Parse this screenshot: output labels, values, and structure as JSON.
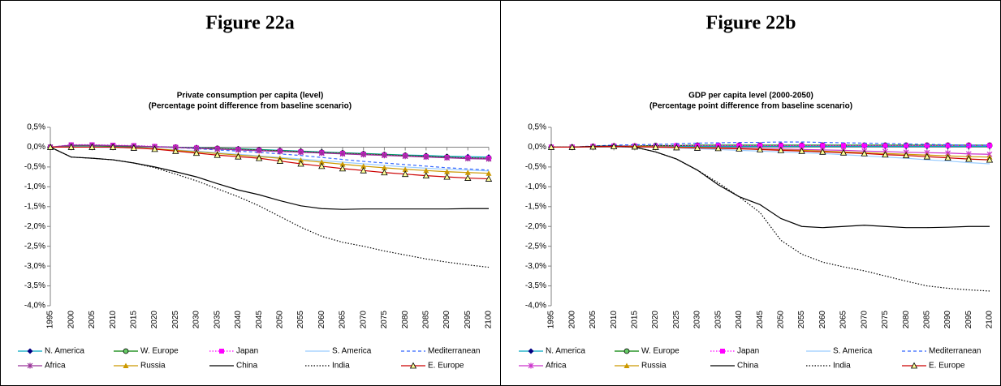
{
  "chart_data": [
    {
      "type": "line",
      "heading": "Figure 22a",
      "title": "Private consumption per capita (level)",
      "subtitle": "(Percentage point difference from baseline scenario)",
      "x": [
        1995,
        2000,
        2005,
        2010,
        2015,
        2020,
        2025,
        2030,
        2035,
        2040,
        2045,
        2050,
        2055,
        2060,
        2065,
        2070,
        2075,
        2080,
        2085,
        2090,
        2095,
        2100
      ],
      "ylim": [
        -4,
        0.5
      ],
      "yticks": [
        {
          "value": 0.5,
          "label": "0,5%"
        },
        {
          "value": 0,
          "label": "0,0%"
        },
        {
          "value": -0.5,
          "label": "-0,5%"
        },
        {
          "value": -1,
          "label": "-1,0%"
        },
        {
          "value": -1.5,
          "label": "-1,5%"
        },
        {
          "value": -2,
          "label": "-2,0%"
        },
        {
          "value": -2.5,
          "label": "-2,5%"
        },
        {
          "value": -3,
          "label": "-3,0%"
        },
        {
          "value": -3.5,
          "label": "-3,5%"
        },
        {
          "value": -4,
          "label": "-4,0%"
        }
      ],
      "series": [
        {
          "name": "N. America",
          "color": "#00a8c0",
          "marker": "diamond",
          "dash": "solid",
          "values": [
            0,
            0.03,
            0.03,
            0.02,
            0.02,
            0.01,
            0,
            -0.01,
            -0.03,
            -0.04,
            -0.06,
            -0.08,
            -0.1,
            -0.12,
            -0.14,
            -0.16,
            -0.18,
            -0.2,
            -0.21,
            -0.23,
            -0.24,
            -0.25
          ]
        },
        {
          "name": "W. Europe",
          "color": "#008000",
          "marker": "circle",
          "dash": "solid",
          "values": [
            0,
            0.04,
            0.04,
            0.03,
            0.02,
            0.01,
            0,
            -0.02,
            -0.03,
            -0.05,
            -0.07,
            -0.09,
            -0.11,
            -0.13,
            -0.15,
            -0.17,
            -0.19,
            -0.21,
            -0.23,
            -0.25,
            -0.27,
            -0.28
          ]
        },
        {
          "name": "Japan",
          "color": "#ff00ff",
          "marker": "square",
          "dash": "dot",
          "values": [
            0,
            0.06,
            0.06,
            0.05,
            0.04,
            0.02,
            0,
            -0.02,
            -0.04,
            -0.06,
            -0.08,
            -0.1,
            -0.12,
            -0.14,
            -0.16,
            -0.18,
            -0.2,
            -0.22,
            -0.24,
            -0.26,
            -0.27,
            -0.28
          ]
        },
        {
          "name": "S. America",
          "color": "#99ccff",
          "marker": "none",
          "dash": "solid",
          "values": [
            0,
            0,
            0,
            -0.01,
            -0.02,
            -0.04,
            -0.07,
            -0.1,
            -0.14,
            -0.18,
            -0.22,
            -0.26,
            -0.3,
            -0.34,
            -0.38,
            -0.42,
            -0.46,
            -0.5,
            -0.53,
            -0.56,
            -0.58,
            -0.6
          ]
        },
        {
          "name": "Mediterranean",
          "color": "#3366ff",
          "marker": "none",
          "dash": "dash",
          "values": [
            0,
            0.05,
            0.05,
            0.04,
            0.03,
            0.01,
            -0.01,
            -0.04,
            -0.07,
            -0.1,
            -0.13,
            -0.17,
            -0.21,
            -0.26,
            -0.31,
            -0.36,
            -0.4,
            -0.44,
            -0.48,
            -0.52,
            -0.55,
            -0.58
          ]
        },
        {
          "name": "Africa",
          "color": "#993399",
          "marker": "star",
          "dash": "solid",
          "values": [
            0,
            0.05,
            0.05,
            0.04,
            0.03,
            0.01,
            -0.01,
            -0.03,
            -0.05,
            -0.07,
            -0.09,
            -0.11,
            -0.13,
            -0.15,
            -0.17,
            -0.19,
            -0.21,
            -0.23,
            -0.25,
            -0.27,
            -0.29,
            -0.3
          ]
        },
        {
          "name": "Russia",
          "color": "#cc9900",
          "marker": "triangle",
          "dash": "solid",
          "values": [
            0,
            0,
            0,
            0,
            -0.02,
            -0.04,
            -0.08,
            -0.12,
            -0.16,
            -0.2,
            -0.24,
            -0.28,
            -0.33,
            -0.38,
            -0.43,
            -0.48,
            -0.52,
            -0.56,
            -0.59,
            -0.62,
            -0.64,
            -0.66
          ]
        },
        {
          "name": "China",
          "color": "#000000",
          "marker": "none",
          "dash": "solid",
          "values": [
            0,
            -0.25,
            -0.28,
            -0.32,
            -0.4,
            -0.5,
            -0.62,
            -0.75,
            -0.92,
            -1.08,
            -1.2,
            -1.35,
            -1.48,
            -1.55,
            -1.57,
            -1.56,
            -1.56,
            -1.56,
            -1.56,
            -1.56,
            -1.55,
            -1.55
          ]
        },
        {
          "name": "India",
          "color": "#000000",
          "marker": "none",
          "dash": "dot",
          "values": [
            0,
            -0.25,
            -0.28,
            -0.32,
            -0.4,
            -0.52,
            -0.68,
            -0.85,
            -1.05,
            -1.25,
            -1.48,
            -1.75,
            -2.02,
            -2.25,
            -2.4,
            -2.5,
            -2.62,
            -2.72,
            -2.82,
            -2.9,
            -2.97,
            -3.03
          ]
        },
        {
          "name": "E. Europe",
          "color": "#cc0000",
          "marker": "triangle-open",
          "dash": "solid",
          "values": [
            0,
            0,
            0,
            0,
            -0.02,
            -0.05,
            -0.1,
            -0.15,
            -0.2,
            -0.24,
            -0.28,
            -0.35,
            -0.42,
            -0.48,
            -0.54,
            -0.59,
            -0.64,
            -0.68,
            -0.72,
            -0.75,
            -0.78,
            -0.8
          ]
        }
      ]
    },
    {
      "type": "line",
      "heading": "Figure 22b",
      "title": "GDP per capita level (2000-2050)",
      "subtitle": "(Percentage point difference from baseline scenario)",
      "x": [
        1995,
        2000,
        2005,
        2010,
        2015,
        2020,
        2025,
        2030,
        2035,
        2040,
        2045,
        2050,
        2055,
        2060,
        2065,
        2070,
        2075,
        2080,
        2085,
        2090,
        2095,
        2100
      ],
      "ylim": [
        -4,
        0.5
      ],
      "yticks": [
        {
          "value": 0.5,
          "label": "0,5%"
        },
        {
          "value": 0,
          "label": "0,0%"
        },
        {
          "value": -0.5,
          "label": "-0,5%"
        },
        {
          "value": -1,
          "label": "-1,0%"
        },
        {
          "value": -1.5,
          "label": "-1,5%"
        },
        {
          "value": -2,
          "label": "-2,0%"
        },
        {
          "value": -2.5,
          "label": "-2,5%"
        },
        {
          "value": -3,
          "label": "-3,0%"
        },
        {
          "value": -3.5,
          "label": "-3,5%"
        },
        {
          "value": -4,
          "label": "-4,0%"
        }
      ],
      "series": [
        {
          "name": "N. America",
          "color": "#00a8c0",
          "marker": "diamond",
          "dash": "solid",
          "values": [
            0,
            0,
            0.01,
            0.02,
            0.02,
            0.02,
            0.02,
            0.02,
            0.02,
            0.02,
            0.02,
            0.02,
            0.02,
            0.02,
            0.02,
            0.02,
            0.02,
            0.02,
            0.02,
            0.02,
            0.02,
            0.02
          ]
        },
        {
          "name": "W. Europe",
          "color": "#008000",
          "marker": "circle",
          "dash": "solid",
          "values": [
            0,
            0,
            0.02,
            0.03,
            0.03,
            0.04,
            0.04,
            0.05,
            0.05,
            0.05,
            0.05,
            0.05,
            0.05,
            0.05,
            0.05,
            0.05,
            0.05,
            0.05,
            0.05,
            0.05,
            0.05,
            0.05
          ]
        },
        {
          "name": "Japan",
          "color": "#ff00ff",
          "marker": "square",
          "dash": "dot",
          "values": [
            0,
            0,
            0.02,
            0.03,
            0.03,
            0.03,
            0.04,
            0.04,
            0.04,
            0.04,
            0.04,
            0.04,
            0.04,
            0.04,
            0.04,
            0.04,
            0.04,
            0.04,
            0.04,
            0.04,
            0.04,
            0.04
          ]
        },
        {
          "name": "S. America",
          "color": "#99ccff",
          "marker": "none",
          "dash": "solid",
          "values": [
            0,
            0,
            0.01,
            0.02,
            0.01,
            0,
            -0.02,
            -0.04,
            -0.06,
            -0.08,
            -0.1,
            -0.12,
            -0.14,
            -0.16,
            -0.19,
            -0.22,
            -0.25,
            -0.28,
            -0.32,
            -0.35,
            -0.39,
            -0.42
          ]
        },
        {
          "name": "Mediterranean",
          "color": "#3366ff",
          "marker": "none",
          "dash": "dash",
          "values": [
            0,
            0,
            0.03,
            0.05,
            0.06,
            0.07,
            0.08,
            0.1,
            0.11,
            0.12,
            0.12,
            0.13,
            0.13,
            0.12,
            0.11,
            0.1,
            0.09,
            0.08,
            0.07,
            0.06,
            0.05,
            0.05
          ]
        },
        {
          "name": "Africa",
          "color": "#cc33cc",
          "marker": "star",
          "dash": "solid",
          "values": [
            0,
            0,
            0.01,
            0.02,
            0.02,
            0.01,
            0,
            -0.01,
            -0.02,
            -0.03,
            -0.04,
            -0.05,
            -0.06,
            -0.07,
            -0.08,
            -0.1,
            -0.11,
            -0.13,
            -0.14,
            -0.15,
            -0.17,
            -0.18
          ]
        },
        {
          "name": "Russia",
          "color": "#cc9900",
          "marker": "triangle",
          "dash": "solid",
          "values": [
            0,
            0,
            0.01,
            0.02,
            0.02,
            0.01,
            0,
            -0.01,
            -0.02,
            -0.04,
            -0.05,
            -0.07,
            -0.08,
            -0.1,
            -0.12,
            -0.14,
            -0.16,
            -0.18,
            -0.2,
            -0.22,
            -0.24,
            -0.25
          ]
        },
        {
          "name": "China",
          "color": "#000000",
          "marker": "none",
          "dash": "solid",
          "values": [
            0,
            0,
            0.02,
            0.03,
            0,
            -0.12,
            -0.3,
            -0.58,
            -0.95,
            -1.25,
            -1.45,
            -1.8,
            -2.0,
            -2.03,
            -2.0,
            -1.97,
            -2.0,
            -2.03,
            -2.03,
            -2.02,
            -2.0,
            -2.0
          ]
        },
        {
          "name": "India",
          "color": "#000000",
          "marker": "none",
          "dash": "dot",
          "values": [
            0,
            0,
            0.02,
            0.03,
            0,
            -0.12,
            -0.3,
            -0.58,
            -0.9,
            -1.25,
            -1.65,
            -2.35,
            -2.7,
            -2.9,
            -3.02,
            -3.12,
            -3.25,
            -3.38,
            -3.5,
            -3.56,
            -3.6,
            -3.63
          ]
        },
        {
          "name": "E. Europe",
          "color": "#cc0000",
          "marker": "triangle-open",
          "dash": "solid",
          "values": [
            0,
            0,
            0.01,
            0.02,
            0.01,
            0,
            -0.01,
            -0.02,
            -0.03,
            -0.04,
            -0.06,
            -0.08,
            -0.1,
            -0.12,
            -0.14,
            -0.16,
            -0.19,
            -0.21,
            -0.24,
            -0.27,
            -0.3,
            -0.32
          ]
        }
      ]
    }
  ]
}
